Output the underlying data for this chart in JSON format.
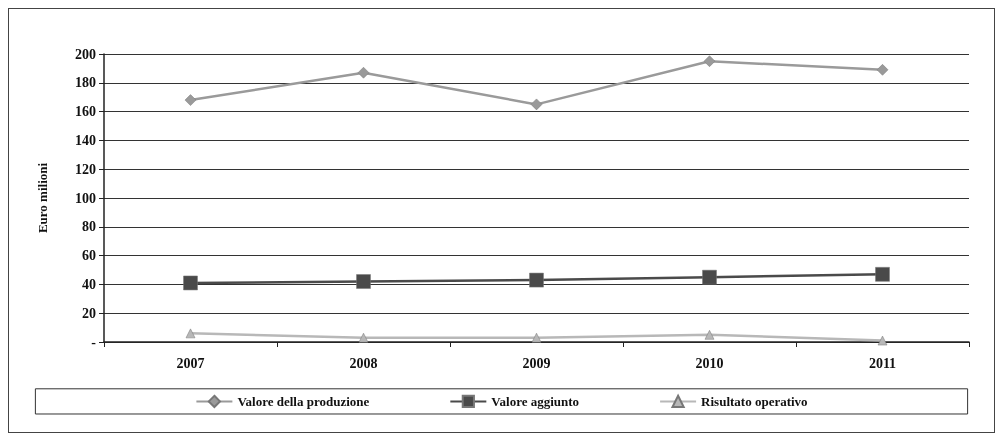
{
  "chart_data": {
    "type": "line",
    "ylabel": "Euro milioni",
    "categories": [
      "2007",
      "2008",
      "2009",
      "2010",
      "2011"
    ],
    "series": [
      {
        "name": "Valore della produzione",
        "color": "#9a9a9a",
        "marker": "diamond",
        "values": [
          168,
          187,
          165,
          195,
          189
        ]
      },
      {
        "name": "Valore aggiunto",
        "color": "#4a4a4a",
        "marker": "square",
        "values": [
          41,
          42,
          43,
          45,
          47
        ]
      },
      {
        "name": "Risultato operativo",
        "color": "#b8b8b8",
        "marker": "triangle",
        "values": [
          6,
          3,
          3,
          5,
          1
        ]
      }
    ],
    "ylim": [
      0,
      200
    ],
    "yticks": [
      {
        "value": 0,
        "label": "-"
      },
      20,
      40,
      60,
      80,
      100,
      120,
      140,
      160,
      180,
      200
    ],
    "grid": "y",
    "legend": "bottom",
    "line_style": "solid"
  }
}
